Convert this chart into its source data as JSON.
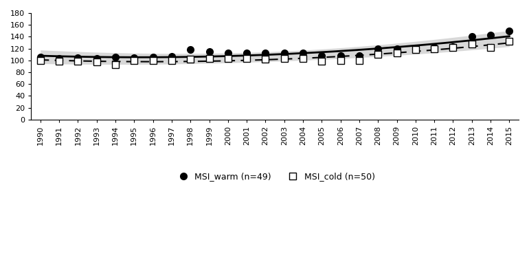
{
  "years": [
    1990,
    1991,
    1992,
    1993,
    1994,
    1995,
    1996,
    1997,
    1998,
    1999,
    2000,
    2001,
    2002,
    2003,
    2004,
    2005,
    2006,
    2007,
    2008,
    2009,
    2010,
    2011,
    2012,
    2013,
    2014,
    2015
  ],
  "msi_warm": [
    105,
    103,
    104,
    103,
    106,
    104,
    106,
    107,
    118,
    115,
    112,
    112,
    112,
    112,
    113,
    108,
    108,
    108,
    120,
    120,
    120,
    122,
    123,
    140,
    143,
    150
  ],
  "msi_cold": [
    100,
    99,
    98,
    97,
    93,
    100,
    100,
    100,
    102,
    103,
    103,
    103,
    102,
    103,
    103,
    99,
    100,
    100,
    110,
    112,
    118,
    120,
    122,
    128,
    122,
    132
  ],
  "ylim": [
    0,
    180
  ],
  "yticks": [
    0,
    20,
    40,
    60,
    80,
    100,
    120,
    140,
    160,
    180
  ],
  "bg_color": "#ffffff",
  "line_color": "#000000",
  "fill_color": "#c8c8c8",
  "fill_alpha": 0.7,
  "legend_warm": "MSI_warm (n=49)",
  "legend_cold": "MSI_cold (n=50)"
}
